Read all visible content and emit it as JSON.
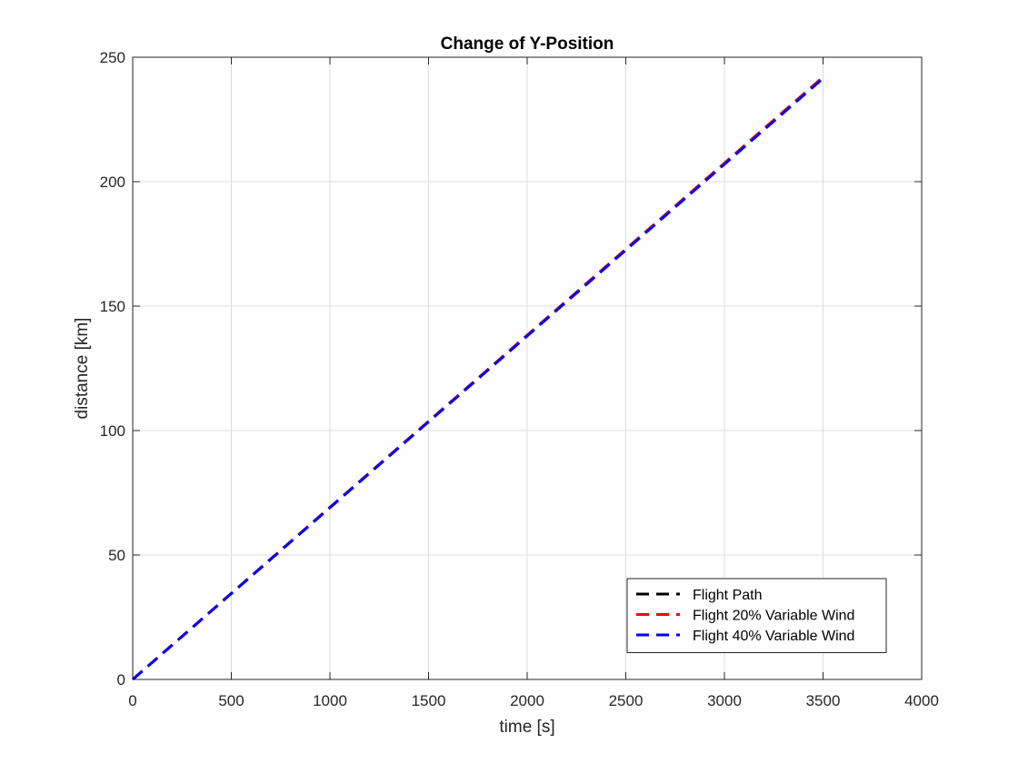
{
  "chart_data": {
    "type": "line",
    "title": "Change of Y-Position",
    "xlabel": "time [s]",
    "ylabel": "distance [km]",
    "xlim": [
      0,
      4000
    ],
    "ylim": [
      0,
      250
    ],
    "xticks": [
      0,
      500,
      1000,
      1500,
      2000,
      2500,
      3000,
      3500,
      4000
    ],
    "yticks": [
      0,
      50,
      100,
      150,
      200,
      250
    ],
    "grid": true,
    "legend_position": "bottom-right",
    "series": [
      {
        "name": "Flight Path",
        "color": "#000000",
        "line_style": "dashed",
        "x": [
          0,
          3500
        ],
        "y": [
          0,
          242
        ]
      },
      {
        "name": "Flight 20% Variable Wind",
        "color": "#ff0000",
        "line_style": "dashed",
        "x": [
          0,
          3500
        ],
        "y": [
          0,
          242
        ]
      },
      {
        "name": "Flight 40% Variable Wind",
        "color": "#0000ff",
        "line_style": "dashed",
        "x": [
          0,
          3500
        ],
        "y": [
          0,
          241.5
        ]
      }
    ]
  }
}
